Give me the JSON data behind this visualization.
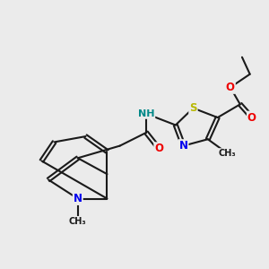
{
  "bg_color": "#ebebeb",
  "bond_color": "#1a1a1a",
  "bond_width": 1.5,
  "dbo": 0.07,
  "atom_colors": {
    "S": "#b8b800",
    "N": "#0000ee",
    "O": "#ee0000",
    "NH": "#008888",
    "C": "#1a1a1a"
  },
  "font_size": 8.5
}
